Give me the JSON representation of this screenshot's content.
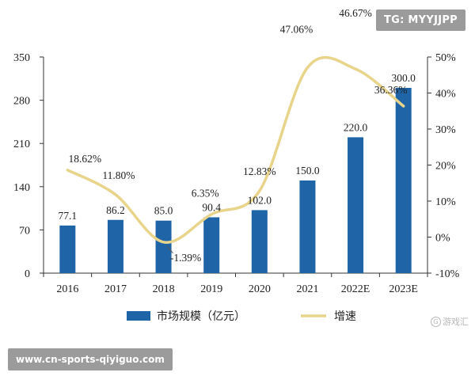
{
  "watermarks": {
    "top": "TG: MYYJJPP",
    "bottom": "www.cn-sports-qiyiguo.com",
    "brand_icon": "G",
    "brand": "游戏汇"
  },
  "chart_data": {
    "type": "bar+line",
    "categories": [
      "2016",
      "2017",
      "2018",
      "2019",
      "2020",
      "2021",
      "2022E",
      "2023E"
    ],
    "series": [
      {
        "name": "市场规模（亿元）",
        "kind": "bar",
        "axis": "left",
        "color": "#1f64a6",
        "values": [
          77.1,
          86.2,
          85.0,
          90.4,
          102.0,
          150.0,
          220.0,
          300.0
        ],
        "labels": [
          "77.1",
          "86.2",
          "85.0",
          "90.4",
          "102.0",
          "150.0",
          "220.0",
          "300.0"
        ]
      },
      {
        "name": "增速",
        "kind": "line",
        "axis": "right",
        "color": "#e8d48a",
        "values": [
          18.62,
          11.8,
          -1.39,
          6.35,
          12.83,
          47.06,
          46.67,
          36.36
        ],
        "labels": [
          "18.62%",
          "11.80%",
          "-1.39%",
          "6.35%",
          "12.83%",
          "47.06%",
          "46.67%",
          "36.36%"
        ]
      }
    ],
    "y_left": {
      "min": 0,
      "max": 350,
      "ticks": [
        "0",
        "70",
        "140",
        "210",
        "280",
        "350"
      ]
    },
    "y_right": {
      "min": -10,
      "max": 50,
      "ticks": [
        "-10%",
        "0%",
        "10%",
        "20%",
        "30%",
        "40%",
        "50%"
      ]
    },
    "grid": false,
    "legend_position": "bottom"
  }
}
